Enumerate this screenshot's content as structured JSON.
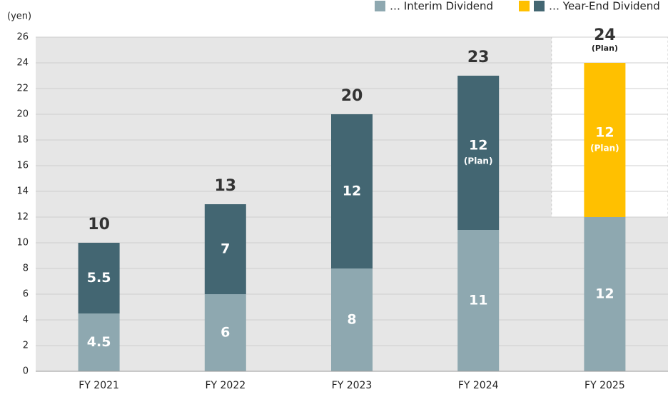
{
  "chart_data": {
    "type": "stacked_bar",
    "y_label": "(yen)",
    "categories": [
      "FY 2021",
      "FY 2022",
      "FY 2023",
      "FY 2024",
      "FY 2025"
    ],
    "series": [
      {
        "name": "… Interim Dividend",
        "color": "#8ea8b0",
        "values": [
          4.5,
          6,
          8,
          11,
          12
        ]
      },
      {
        "name": "… Year-End Dividend",
        "color": "#436672",
        "colors": [
          "#436672",
          "#436672",
          "#436672",
          "#436672",
          "#ffc000"
        ],
        "legend_colors": [
          "#ffc000",
          "#436672"
        ],
        "values": [
          5.5,
          7,
          12,
          12,
          12
        ]
      }
    ],
    "year_end_notes": [
      null,
      null,
      null,
      "(Plan)",
      "(Plan)"
    ],
    "totals": [
      10,
      13,
      20,
      23,
      24
    ],
    "total_notes": [
      null,
      null,
      null,
      null,
      "(Plan)"
    ],
    "ylim": [
      0,
      26
    ],
    "yticks": [
      0,
      2,
      4,
      6,
      8,
      10,
      12,
      14,
      16,
      18,
      20,
      22,
      24,
      26
    ],
    "grid": true,
    "highlight_last": true
  }
}
